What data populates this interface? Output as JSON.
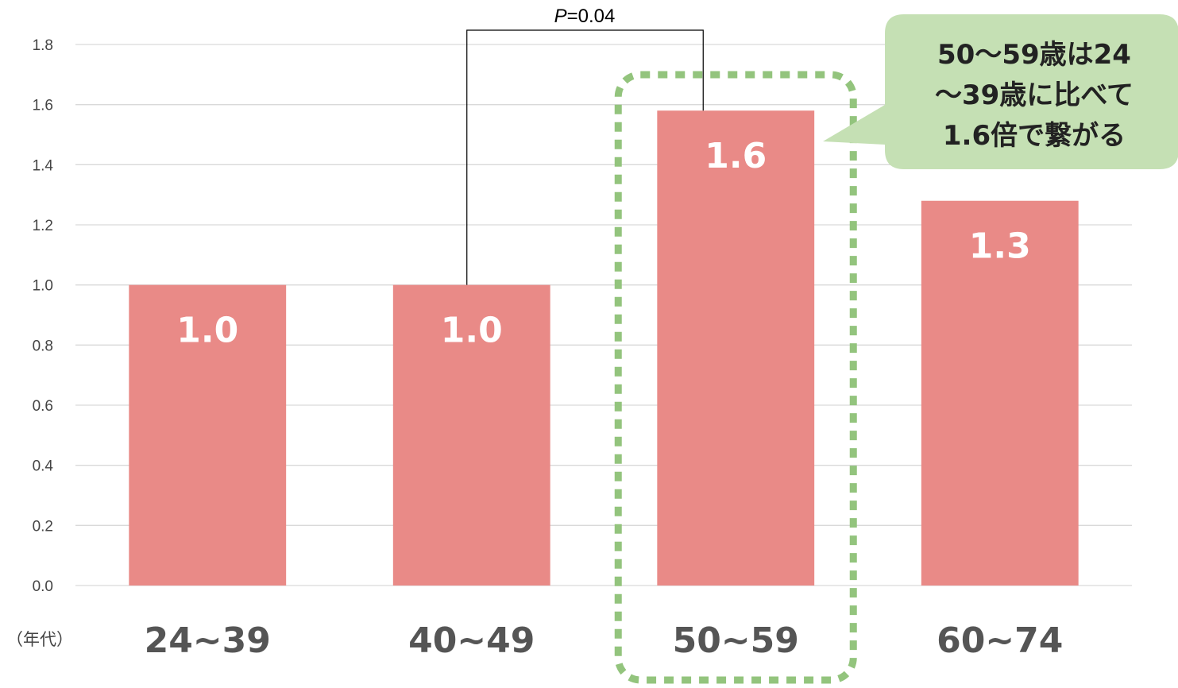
{
  "chart_data": {
    "type": "bar",
    "categories": [
      "24~39",
      "40~49",
      "50~59",
      "60~74"
    ],
    "values": [
      1.0,
      1.0,
      1.58,
      1.28
    ],
    "data_labels": [
      "1.0",
      "1.0",
      "1.6",
      "1.3"
    ],
    "x_unit_label": "（年代）",
    "yticks": [
      "0.0",
      "0.2",
      "0.4",
      "0.6",
      "0.8",
      "1.0",
      "1.2",
      "1.4",
      "1.6",
      "1.8"
    ],
    "ylim": [
      0,
      1.8
    ],
    "grid": true,
    "legend": "none",
    "bar_color": "#E98A87",
    "highlight_category": "50~59",
    "highlight_color": "#93C47D",
    "significance": {
      "from": "40~49",
      "to": "50~59",
      "p_prefix": "P",
      "p_rest": "=0.04"
    },
    "callout": {
      "lines": [
        "50～59歳は24",
        "～39歳に比べて",
        "1.6倍で繋がる"
      ],
      "fill": "#C5E0B4"
    }
  }
}
